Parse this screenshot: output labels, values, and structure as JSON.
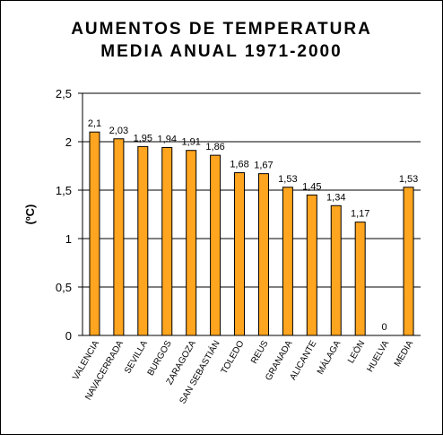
{
  "chart_data": {
    "type": "bar",
    "title_lines": [
      "AUMENTOS DE TEMPERATURA",
      "MEDIA ANUAL 1971-2000"
    ],
    "ylabel": "(ºC)",
    "xlabel": "",
    "categories": [
      "VALENCIA",
      "NAVACERRADA",
      "SEVILLA",
      "BURGOS",
      "ZARAGOZA",
      "SAN SEBASTIÁN",
      "TOLEDO",
      "REUS",
      "GRANADA",
      "ALICANTE",
      "MÁLAGA",
      "LEÓN",
      "HUELVA",
      "MEDIA"
    ],
    "values": [
      2.1,
      2.03,
      1.95,
      1.94,
      1.91,
      1.86,
      1.68,
      1.67,
      1.53,
      1.45,
      1.34,
      1.17,
      0,
      1.53
    ],
    "value_labels": [
      "2,1",
      "2,03",
      "1,95",
      "1,94",
      "1,91",
      "1,86",
      "1,68",
      "1,67",
      "1,53",
      "1,45",
      "1,34",
      "1,17",
      "0",
      "1,53"
    ],
    "ylim": [
      0,
      2.5
    ],
    "yticks": [
      0,
      0.5,
      1,
      1.5,
      2,
      2.5
    ],
    "ytick_labels": [
      "0",
      "0,5",
      "1",
      "1,5",
      "2",
      "2,5"
    ],
    "grid": true,
    "legend": "none",
    "colors": {
      "bar": "#ffa51f",
      "bar_stroke": "#000000",
      "grid": "#000000"
    }
  }
}
